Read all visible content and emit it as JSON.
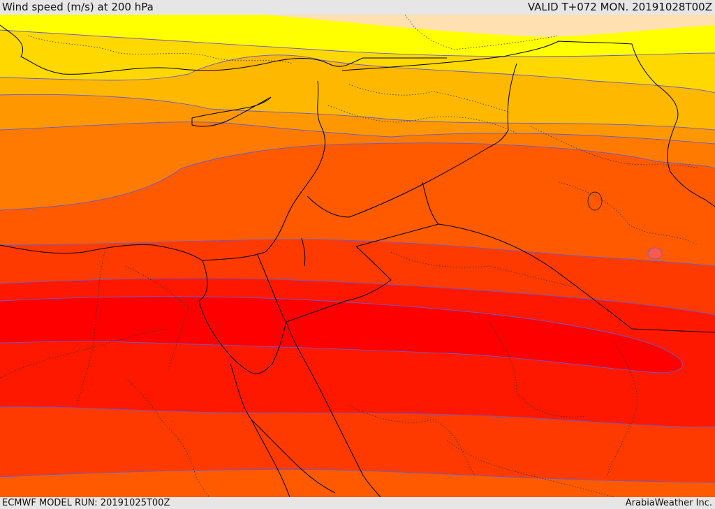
{
  "header": {
    "title": "Wind speed (m/s) at 200 hPa",
    "valid": "VALID T+072 MON. 20191028T00Z"
  },
  "footer": {
    "model_run": "ECMWF MODEL RUN: 20191025T00Z",
    "credit": "ArabiaWeather Inc."
  },
  "colors": {
    "band_1": "#ffe0b0",
    "band_2": "#ffff00",
    "band_3": "#ffd800",
    "band_4": "#ffb800",
    "band_5": "#ff9800",
    "band_6": "#ff7a00",
    "band_7": "#ff5a00",
    "band_8": "#ff3a00",
    "band_9": "#ff1800",
    "band_10": "#ff0000",
    "contour": "#6a5acd",
    "border": "#000000"
  }
}
